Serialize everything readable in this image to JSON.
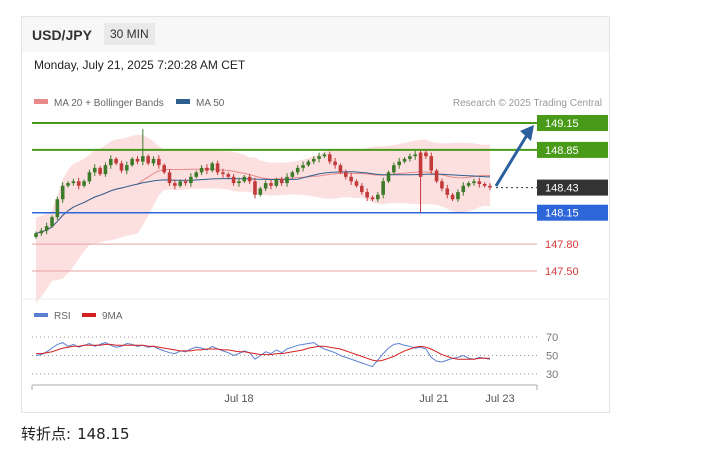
{
  "header": {
    "symbol": "USD/JPY",
    "interval": "30 MIN"
  },
  "datetime": "Monday, July 21, 2025 7:20:28 AM CET",
  "legend": {
    "ma20": "MA 20 + Bollinger Bands",
    "ma50": "MA 50",
    "credit": "Research © 2025 Trading Central"
  },
  "rsi_legend": {
    "rsi": "RSI",
    "ma9": "9MA"
  },
  "pivot": {
    "label": "转折点:",
    "value": "148.15"
  },
  "colors": {
    "resistance": "#4a9a1a",
    "support": "#2d66d8",
    "target": "#d43a3a",
    "current": "#333333",
    "arrow": "#2c5f9e",
    "bollinger": "#fbd6d6",
    "ma20": "#e88a8a",
    "ma50": "#2f5f8e",
    "rsi": "#5b7fd1",
    "rsi_ma": "#d42020"
  },
  "chart_data": {
    "type": "candlestick",
    "price_axis": {
      "min": 147.2,
      "max": 149.3
    },
    "levels": [
      {
        "label": "149.15",
        "value": 149.15,
        "kind": "resistance"
      },
      {
        "label": "148.85",
        "value": 148.85,
        "kind": "resistance"
      },
      {
        "label": "148.43",
        "value": 148.43,
        "kind": "current"
      },
      {
        "label": "148.15",
        "value": 148.15,
        "kind": "support"
      },
      {
        "label": "147.80",
        "value": 147.8,
        "kind": "target"
      },
      {
        "label": "147.50",
        "value": 147.5,
        "kind": "target"
      }
    ],
    "x_ticks": [
      "Jul 18",
      "Jul 21",
      "Jul 23"
    ],
    "close": [
      147.92,
      147.95,
      148.0,
      148.1,
      148.3,
      148.45,
      148.48,
      148.5,
      148.45,
      148.5,
      148.6,
      148.65,
      148.58,
      148.68,
      148.75,
      148.7,
      148.62,
      148.68,
      148.75,
      148.72,
      148.78,
      148.7,
      148.75,
      148.68,
      148.6,
      148.48,
      148.45,
      148.5,
      148.48,
      148.55,
      148.6,
      148.65,
      148.62,
      148.7,
      148.6,
      148.58,
      148.55,
      148.48,
      148.5,
      148.55,
      148.5,
      148.35,
      148.42,
      148.48,
      148.45,
      148.52,
      148.48,
      148.55,
      148.6,
      148.65,
      148.68,
      148.72,
      148.75,
      148.78,
      148.8,
      148.72,
      148.68,
      148.6,
      148.55,
      148.5,
      148.45,
      148.38,
      148.32,
      148.3,
      148.35,
      148.5,
      148.6,
      148.68,
      148.72,
      148.75,
      148.78,
      148.8,
      148.82,
      148.78,
      148.62,
      148.5,
      148.42,
      148.35,
      148.3,
      148.38,
      148.45,
      148.48,
      148.5,
      148.47,
      148.45,
      148.43
    ],
    "rsi": {
      "ticks": [
        70,
        50,
        30
      ],
      "ylim": [
        20,
        80
      ],
      "values": [
        50,
        51,
        54,
        58,
        62,
        64,
        60,
        62,
        59,
        61,
        63,
        60,
        62,
        64,
        61,
        59,
        60,
        63,
        62,
        60,
        61,
        59,
        60,
        57,
        55,
        53,
        52,
        55,
        54,
        57,
        59,
        58,
        56,
        60,
        57,
        55,
        53,
        50,
        52,
        55,
        53,
        46,
        50,
        54,
        52,
        56,
        53,
        57,
        59,
        61,
        62,
        63,
        64,
        60,
        57,
        55,
        53,
        50,
        48,
        46,
        44,
        42,
        40,
        38,
        45,
        52,
        58,
        62,
        63,
        61,
        60,
        58,
        59,
        57,
        48,
        44,
        43,
        45,
        47,
        48,
        50,
        47,
        46,
        48,
        47,
        46
      ]
    },
    "rsi_ma": {
      "values": [
        52,
        52,
        53,
        54,
        56,
        58,
        59,
        60,
        60,
        61,
        61,
        61,
        61,
        62,
        62,
        61,
        61,
        61,
        61,
        61,
        61,
        60,
        60,
        59,
        58,
        57,
        56,
        55,
        55,
        55,
        56,
        56,
        57,
        57,
        57,
        56,
        56,
        55,
        54,
        54,
        53,
        52,
        51,
        51,
        51,
        52,
        52,
        53,
        54,
        55,
        56,
        58,
        59,
        60,
        60,
        59,
        58,
        57,
        55,
        53,
        51,
        49,
        47,
        45,
        44,
        45,
        47,
        49,
        52,
        55,
        57,
        59,
        60,
        59,
        57,
        54,
        51,
        49,
        47,
        46,
        46,
        46,
        46,
        47,
        47,
        47
      ]
    }
  }
}
